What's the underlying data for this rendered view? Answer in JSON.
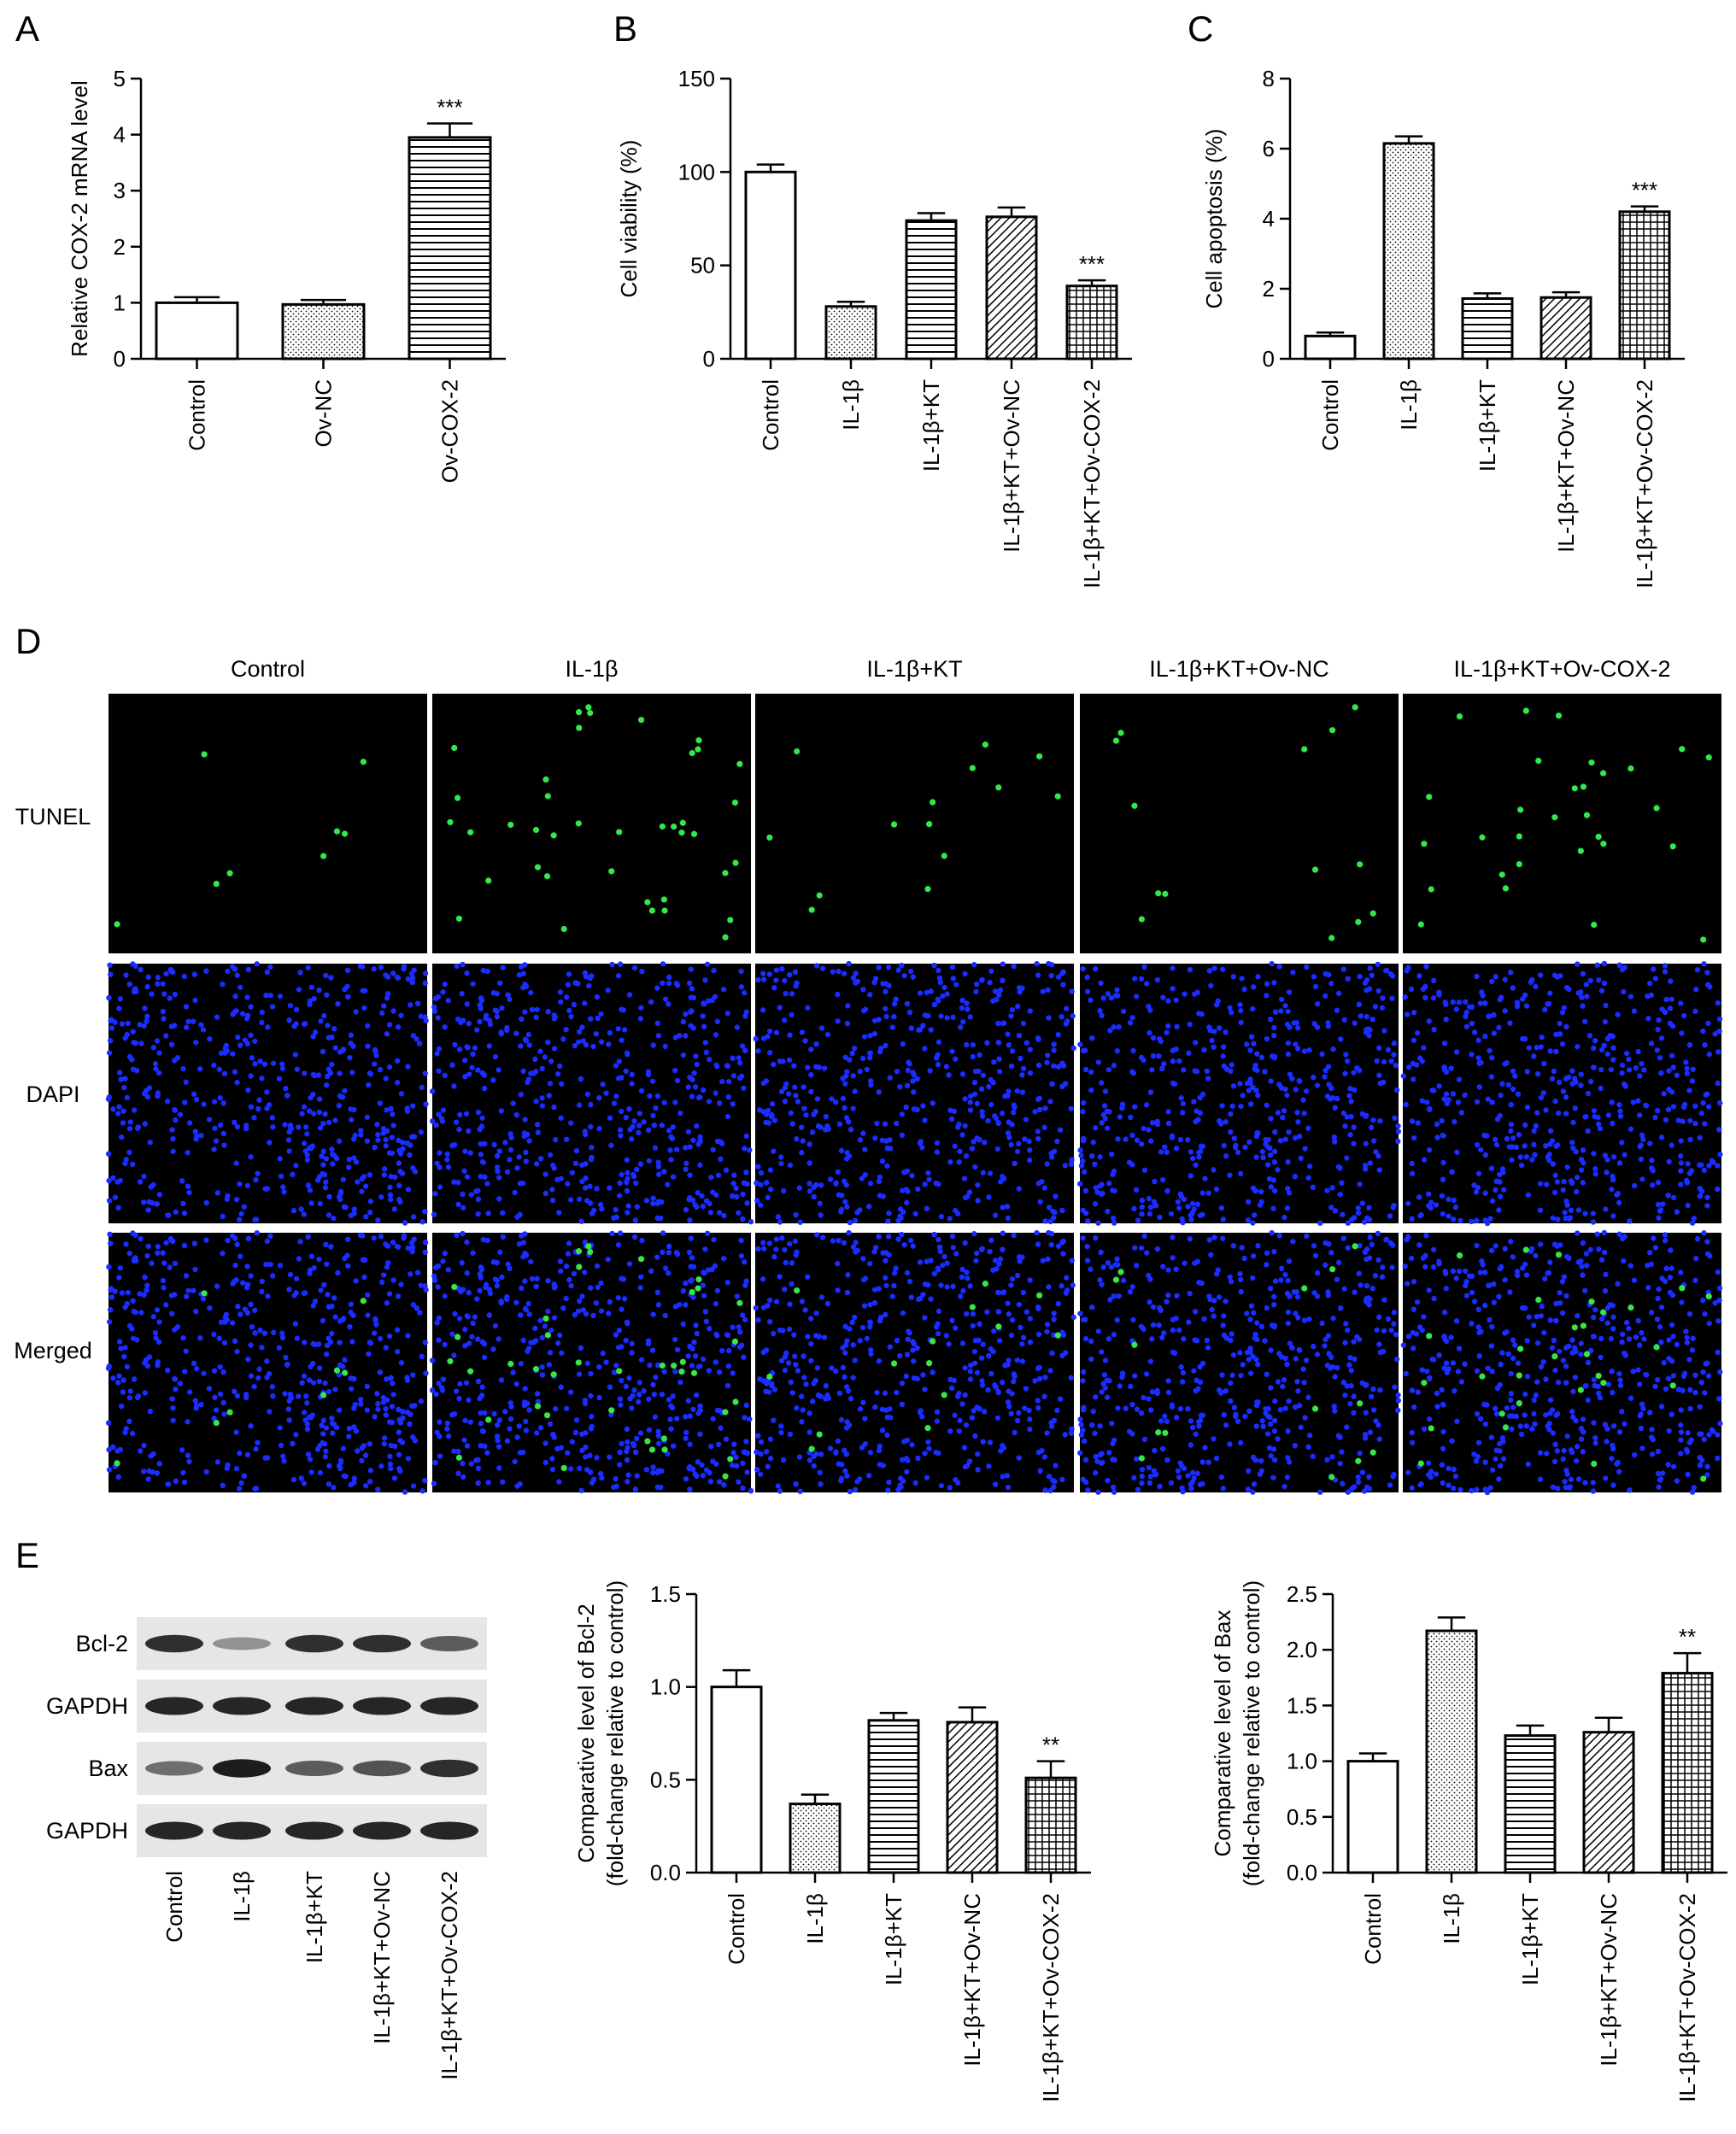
{
  "panels": {
    "A": {
      "letter": "A"
    },
    "B": {
      "letter": "B"
    },
    "C": {
      "letter": "C"
    },
    "D": {
      "letter": "D"
    },
    "E": {
      "letter": "E"
    }
  },
  "microscopy": {
    "columns": [
      "Control",
      "IL-1β",
      "IL-1β+KT",
      "IL-1β+KT+Ov-NC",
      "IL-1β+KT+Ov-COX-2"
    ],
    "rows": [
      "TUNEL",
      "DAPI",
      "Merged"
    ],
    "colors": {
      "tunel": "#33e84a",
      "dapi": "#1a2cff",
      "background": "#000000"
    }
  },
  "western_blot": {
    "bands": [
      "Bcl-2",
      "GAPDH",
      "Bax",
      "GAPDH"
    ],
    "lanes": [
      "Control",
      "IL-1β",
      "IL-1β+KT",
      "IL-1β+KT+Ov-NC",
      "IL-1β+KT+Ov-COX-2"
    ],
    "intensities": [
      [
        0.85,
        0.3,
        0.85,
        0.85,
        0.6
      ],
      [
        0.9,
        0.9,
        0.9,
        0.9,
        0.9
      ],
      [
        0.5,
        0.95,
        0.6,
        0.65,
        0.85
      ],
      [
        0.9,
        0.9,
        0.9,
        0.9,
        0.9
      ]
    ]
  },
  "chart_data": [
    {
      "id": "A",
      "type": "bar",
      "categories": [
        "Control",
        "Ov-NC",
        "Ov-COX-2"
      ],
      "values": [
        1.0,
        0.97,
        3.95
      ],
      "errors": [
        0.1,
        0.08,
        0.25
      ],
      "patterns": [
        "none",
        "dots",
        "hlines"
      ],
      "significance": [
        "",
        "",
        "***"
      ],
      "ylabel": "Relative COX-2 mRNA level",
      "ylim": [
        0,
        5
      ],
      "yticks": [
        "0",
        "1",
        "2",
        "3",
        "4",
        "5"
      ],
      "ytick_values": [
        0,
        1,
        2,
        3,
        4,
        5
      ]
    },
    {
      "id": "B",
      "type": "bar",
      "categories": [
        "Control",
        "IL-1β",
        "IL-1β+KT",
        "IL-1β+KT+Ov-NC",
        "IL-1β+KT+Ov-COX-2"
      ],
      "values": [
        100,
        28,
        74,
        76,
        39
      ],
      "errors": [
        4,
        2.5,
        4,
        5,
        3
      ],
      "patterns": [
        "none",
        "dots",
        "hlines",
        "diag",
        "grid"
      ],
      "significance": [
        "",
        "",
        "",
        "",
        "***"
      ],
      "ylabel": "Cell viability (%)",
      "ylim": [
        0,
        150
      ],
      "yticks": [
        "0",
        "50",
        "100",
        "150"
      ],
      "ytick_values": [
        0,
        50,
        100,
        150
      ]
    },
    {
      "id": "C",
      "type": "bar",
      "categories": [
        "Control",
        "IL-1β",
        "IL-1β+KT",
        "IL-1β+KT+Ov-NC",
        "IL-1β+KT+Ov-COX-2"
      ],
      "values": [
        0.65,
        6.15,
        1.72,
        1.75,
        4.2
      ],
      "errors": [
        0.1,
        0.2,
        0.15,
        0.15,
        0.15
      ],
      "patterns": [
        "none",
        "dots",
        "hlines",
        "diag",
        "grid"
      ],
      "significance": [
        "",
        "",
        "",
        "",
        "***"
      ],
      "ylabel": "Cell apoptosis (%)",
      "ylim": [
        0,
        8
      ],
      "yticks": [
        "0",
        "2",
        "4",
        "6",
        "8"
      ],
      "ytick_values": [
        0,
        2,
        4,
        6,
        8
      ]
    },
    {
      "id": "E1",
      "type": "bar",
      "categories": [
        "Control",
        "IL-1β",
        "IL-1β+KT",
        "IL-1β+KT+Ov-NC",
        "IL-1β+KT+Ov-COX-2"
      ],
      "values": [
        1.0,
        0.37,
        0.82,
        0.81,
        0.51
      ],
      "errors": [
        0.09,
        0.05,
        0.04,
        0.08,
        0.09
      ],
      "patterns": [
        "none",
        "dots",
        "hlines",
        "diag",
        "grid"
      ],
      "significance": [
        "",
        "",
        "",
        "",
        "**"
      ],
      "ylabel": [
        "Comparative level of Bcl-2",
        "(fold-change relative to control)"
      ],
      "ylim": [
        0,
        1.5
      ],
      "yticks": [
        "0.0",
        "0.5",
        "1.0",
        "1.5"
      ],
      "ytick_values": [
        0,
        0.5,
        1.0,
        1.5
      ]
    },
    {
      "id": "E2",
      "type": "bar",
      "categories": [
        "Control",
        "IL-1β",
        "IL-1β+KT",
        "IL-1β+KT+Ov-NC",
        "IL-1β+KT+Ov-COX-2"
      ],
      "values": [
        1.0,
        2.17,
        1.23,
        1.26,
        1.79
      ],
      "errors": [
        0.07,
        0.12,
        0.09,
        0.13,
        0.18
      ],
      "patterns": [
        "none",
        "dots",
        "hlines",
        "diag",
        "grid"
      ],
      "significance": [
        "",
        "",
        "",
        "",
        "**"
      ],
      "ylabel": [
        "Comparative level of Bax",
        "(fold-change relative to control)"
      ],
      "ylim": [
        0,
        2.5
      ],
      "yticks": [
        "0.0",
        "0.5",
        "1.0",
        "1.5",
        "2.0",
        "2.5"
      ],
      "ytick_values": [
        0,
        0.5,
        1.0,
        1.5,
        2.0,
        2.5
      ]
    }
  ]
}
